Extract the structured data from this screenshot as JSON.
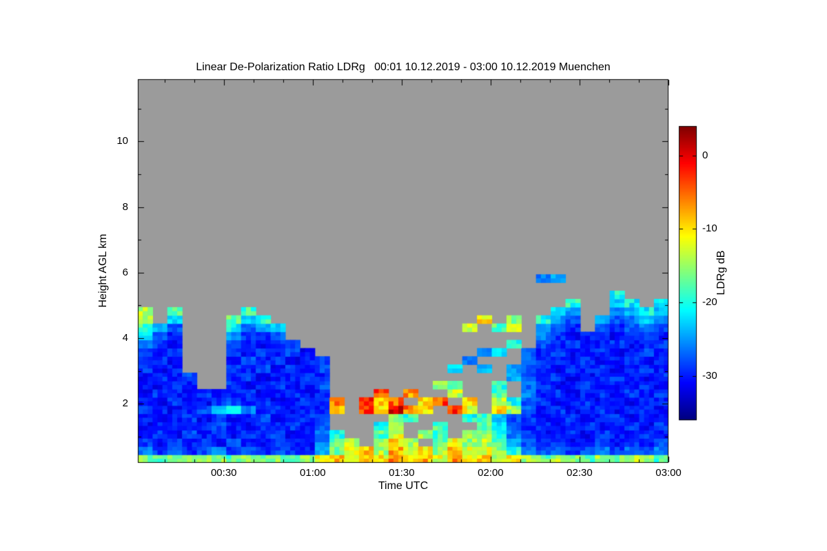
{
  "chart_data": {
    "type": "heatmap",
    "title": "Linear De-Polarization Ratio LDRg   00:01 10.12.2019 - 03:00 10.12.2019 Muenchen",
    "xlabel": "Time UTC",
    "ylabel": "Height AGL km",
    "x_axis": {
      "units": "hours UTC",
      "min": 0.0167,
      "max": 3.0,
      "ticks": [
        0.5,
        1.0,
        1.5,
        2.0,
        2.5,
        3.0
      ],
      "tick_labels": [
        "00:30",
        "01:00",
        "01:30",
        "02:00",
        "02:30",
        "03:00"
      ],
      "minor_step": 0.16667
    },
    "y_axis": {
      "units": "km AGL",
      "min": 0.2,
      "max": 11.9,
      "ticks": [
        2,
        4,
        6,
        8,
        10
      ],
      "tick_labels": [
        "2",
        "4",
        "6",
        "8",
        "10"
      ],
      "minor_step": 1
    },
    "colorbar": {
      "label": "LDRg dB",
      "colormap": "jet",
      "vmin": -36,
      "vmax": 4,
      "ticks": [
        0,
        -10,
        -20,
        -30
      ],
      "tick_labels": [
        "0",
        "-10",
        "-20",
        "-30"
      ]
    },
    "no_data_color": "#9b9b9b",
    "frame_color": "#000000",
    "grid": {
      "comment": "Sparse time-height grid of LDRg (dB). 36 columns x 24 rows. Columns start at t0 hours, width dt hours. Rows bottom-up from y0 km, thickness dy km. Each row is a list of runs [startCol,[values...]]; cells not covered are no-data (gray).",
      "t0": 0.0167,
      "dt": 0.0829,
      "cols": 36,
      "y0": 0.2,
      "dy": 0.25,
      "rows_count": 24,
      "rows": [
        [
          [
            0,
            [
              -16,
              -18,
              -15,
              -17,
              -14,
              -16,
              -18,
              -15,
              -17,
              -16,
              -19,
              -15,
              -12,
              -9,
              -13,
              -8,
              -11,
              -6,
              -10,
              -8,
              -12,
              -7,
              -11,
              -9,
              -13,
              -10,
              -15,
              -17,
              -14,
              -16,
              -18,
              -15,
              -17,
              -14,
              -16,
              -18
            ]
          ]
        ],
        [
          [
            0,
            [
              -26,
              -29,
              -27,
              -30,
              -28,
              -26,
              -29,
              -27,
              -30,
              -28,
              -29,
              -30,
              -24,
              -16,
              -11,
              -9,
              -14,
              -8,
              -12,
              -10,
              -15,
              -9,
              -13,
              -12,
              -16,
              -20,
              -26,
              -28,
              -27,
              -29,
              -28,
              -26,
              -29,
              -27,
              -28,
              -26
            ]
          ]
        ],
        [
          [
            0,
            [
              -29,
              -31,
              -28,
              -30,
              -29,
              -31,
              -28,
              -30,
              -31,
              -29,
              -30,
              -31,
              -26,
              -18,
              -13
            ]
          ],
          [
            16,
            [
              -16,
              -10,
              -14
            ]
          ],
          [
            20,
            [
              -17,
              -12,
              -15,
              -14,
              -18,
              -24,
              -28,
              -30,
              -29,
              -31,
              -30,
              -28,
              -31,
              -29,
              -30,
              -28
            ]
          ]
        ],
        [
          [
            0,
            [
              -30,
              -29,
              -31,
              -28,
              -30,
              -29,
              -31,
              -29,
              -30,
              -28,
              -31,
              -30,
              -27,
              -20
            ]
          ],
          [
            16,
            [
              -18,
              -12
            ]
          ],
          [
            19,
            [
              -15,
              -19
            ]
          ],
          [
            22,
            [
              -16,
              -15,
              -20,
              -26,
              -29,
              -31,
              -30,
              -29,
              -31,
              -29,
              -30,
              -31,
              -29,
              -30
            ]
          ]
        ],
        [
          [
            0,
            [
              -31,
              -30,
              -29,
              -31,
              -30,
              -28,
              -30,
              -31,
              -29,
              -30,
              -29,
              -31,
              -28
            ]
          ],
          [
            16,
            [
              -20,
              -14
            ]
          ],
          [
            20,
            [
              -18
            ]
          ],
          [
            23,
            [
              -17,
              -22,
              -27,
              -30,
              -29,
              -31,
              -30,
              -29,
              -31,
              -30,
              -29,
              -31,
              -29
            ]
          ]
        ],
        [
          [
            0,
            [
              -30,
              -31,
              -30,
              -29,
              -31,
              -29,
              -31,
              -30,
              -28,
              -31,
              -30,
              -29,
              -29
            ]
          ],
          [
            17,
            [
              -16,
              -19
            ]
          ],
          [
            22,
            [
              -20,
              -18,
              -24,
              -28,
              -29,
              -31,
              -30,
              -29,
              -31,
              -30,
              -29,
              -31,
              -30,
              -31
            ]
          ]
        ],
        [
          [
            0,
            [
              -29,
              -30,
              -31,
              -30,
              -28,
              -24,
              -20,
              -26,
              -30,
              -29,
              -31,
              -30,
              -30,
              -8
            ]
          ],
          [
            15,
            [
              -4,
              -10,
              0,
              -6,
              -9
            ]
          ],
          [
            21,
            [
              -3,
              -12
            ]
          ],
          [
            24,
            [
              -10,
              -14,
              -27,
              -30,
              -29,
              -31,
              -30,
              -29,
              -31,
              -30,
              -29,
              -31
            ]
          ]
        ],
        [
          [
            0,
            [
              -30,
              -31,
              -29,
              -30,
              -31,
              -29,
              -28,
              -30,
              -29,
              -31,
              -30,
              -29,
              -29,
              -6
            ]
          ],
          [
            15,
            [
              -2,
              -8,
              -5
            ]
          ],
          [
            19,
            [
              -10,
              -4
            ]
          ],
          [
            22,
            [
              -9
            ]
          ],
          [
            24,
            [
              -14,
              -20,
              -28,
              -29,
              -31,
              -30,
              -29,
              -31,
              -30,
              -31,
              -29,
              -30
            ]
          ]
        ],
        [
          [
            0,
            [
              -31,
              -29,
              -30,
              -31,
              -29,
              -30,
              -30,
              -29,
              -31,
              -30,
              -29,
              -31,
              -30
            ]
          ],
          [
            16,
            [
              -4
            ]
          ],
          [
            18,
            [
              -7
            ]
          ],
          [
            21,
            [
              -13
            ]
          ],
          [
            24,
            [
              -18
            ]
          ],
          [
            26,
            [
              -26,
              -30,
              -29,
              -31,
              -30,
              -29,
              -31,
              -29,
              -30,
              -29
            ]
          ]
        ],
        [
          [
            0,
            [
              -30,
              -31,
              -29,
              -30
            ]
          ],
          [
            6,
            [
              -29,
              -31,
              -30,
              -29,
              -31,
              -30,
              -28
            ]
          ],
          [
            20,
            [
              -16,
              -18
            ]
          ],
          [
            24,
            [
              -20
            ]
          ],
          [
            26,
            [
              -27,
              -29,
              -31,
              -30,
              -29,
              -31,
              -30,
              -31,
              -29,
              -31
            ]
          ]
        ],
        [
          [
            0,
            [
              -31,
              -29,
              -30,
              -28
            ]
          ],
          [
            6,
            [
              -30,
              -29,
              -31,
              -30,
              -30,
              -29,
              -30
            ]
          ],
          [
            25,
            [
              -24,
              -28,
              -30,
              -29,
              -31,
              -31,
              -30,
              -29,
              -30,
              -31,
              -29
            ]
          ]
        ],
        [
          [
            0,
            [
              -29,
              -31,
              -30
            ]
          ],
          [
            6,
            [
              -29,
              -30,
              -28,
              -31,
              -29,
              -30,
              -28
            ]
          ],
          [
            21,
            [
              -22
            ]
          ],
          [
            23,
            [
              -24
            ]
          ],
          [
            25,
            [
              -25,
              -28,
              -30,
              -31,
              -29,
              -30,
              -29,
              -31,
              -30,
              -29,
              -30
            ]
          ]
        ],
        [
          [
            0,
            [
              -30,
              -29,
              -31
            ]
          ],
          [
            6,
            [
              -30,
              -28,
              -30,
              -29,
              -31,
              -30,
              -29
            ]
          ],
          [
            22,
            [
              -26
            ]
          ],
          [
            26,
            [
              -26,
              -29,
              -30,
              -31,
              -29,
              -31,
              -30,
              -29,
              -31,
              -30
            ]
          ]
        ],
        [
          [
            0,
            [
              -28,
              -30,
              -29
            ]
          ],
          [
            6,
            [
              -29,
              -31,
              -29,
              -30,
              -28,
              -31
            ]
          ],
          [
            23,
            [
              -25,
              -22
            ]
          ],
          [
            26,
            [
              -27,
              -30,
              -29,
              -31,
              -30,
              -29,
              -31,
              -30,
              -28,
              -31
            ]
          ]
        ],
        [
          [
            0,
            [
              -26,
              -29,
              -31
            ]
          ],
          [
            6,
            [
              -28,
              -30,
              -31,
              -29,
              -29
            ]
          ],
          [
            25,
            [
              -20
            ]
          ],
          [
            27,
            [
              -28,
              -30,
              -29,
              -31,
              -30,
              -29,
              -31,
              -30,
              -29
            ]
          ]
        ],
        [
          [
            0,
            [
              -22,
              -27,
              -30
            ]
          ],
          [
            6,
            [
              -25,
              -29,
              -30,
              -27
            ]
          ],
          [
            27,
            [
              -26,
              -29,
              -31,
              -30,
              -29,
              -31,
              -29,
              -28,
              -30
            ]
          ]
        ],
        [
          [
            0,
            [
              -18,
              -24,
              -28
            ]
          ],
          [
            6,
            [
              -21,
              -27,
              -25,
              -23
            ]
          ],
          [
            22,
            [
              -14
            ]
          ],
          [
            24,
            [
              -18,
              -11
            ]
          ],
          [
            27,
            [
              -24,
              -28,
              -30
            ]
          ],
          [
            31,
            [
              -27,
              -30,
              -28,
              -26,
              -28
            ]
          ]
        ],
        [
          [
            0,
            [
              -15
            ]
          ],
          [
            2,
            [
              -22
            ]
          ],
          [
            6,
            [
              -17,
              -23,
              -19
            ]
          ],
          [
            23,
            [
              -10
            ]
          ],
          [
            25,
            [
              -15
            ]
          ],
          [
            27,
            [
              -20,
              -25,
              -28
            ]
          ],
          [
            31,
            [
              -24,
              -28,
              -26,
              -23,
              -26
            ]
          ]
        ],
        [
          [
            0,
            [
              -14
            ]
          ],
          [
            2,
            [
              -18
            ]
          ],
          [
            7,
            [
              -19
            ]
          ],
          [
            28,
            [
              -22,
              -25
            ]
          ],
          [
            32,
            [
              -26,
              -24,
              -21,
              -24
            ]
          ]
        ],
        [
          [
            29,
            [
              -20
            ]
          ],
          [
            32,
            [
              -23,
              -21
            ]
          ],
          [
            35,
            [
              -22
            ]
          ]
        ],
        [
          [
            32,
            [
              -20
            ]
          ]
        ],
        [],
        [
          [
            27,
            [
              -26,
              -24
            ]
          ]
        ],
        []
      ]
    }
  }
}
